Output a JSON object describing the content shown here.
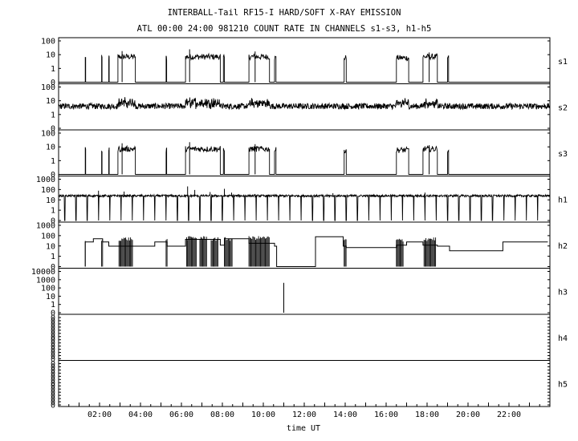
{
  "chart_data": {
    "type": "line",
    "title": "INTERBALL-Tail RF15-I HARD/SOFT X-RAY EMISSION",
    "subtitle": "ATL 00:00 24:00 981210  COUNT RATE IN CHANNELS s1-s3, h1-h5",
    "xlabel": "time UT",
    "xlim": [
      0,
      24
    ],
    "x_ticks": [
      "02:00",
      "04:00",
      "06:00",
      "08:00",
      "10:00",
      "12:00",
      "14:00",
      "16:00",
      "18:00",
      "20:00",
      "22:00"
    ],
    "x_tick_hours": [
      2,
      4,
      6,
      8,
      10,
      12,
      14,
      16,
      18,
      20,
      22
    ],
    "y_scale": "log",
    "panels": [
      {
        "name": "s1",
        "ylim": [
          0.1,
          100
        ],
        "y_ticks": [
          "100",
          "10",
          "1",
          "0"
        ],
        "baseline": 0.1,
        "bursts": [
          [
            1.3,
            1.32,
            5
          ],
          [
            2.1,
            2.12,
            5
          ],
          [
            2.45,
            2.47,
            5
          ],
          [
            2.9,
            3.75,
            6
          ],
          [
            5.25,
            5.28,
            5
          ],
          [
            6.2,
            7.9,
            6
          ],
          [
            8.05,
            8.1,
            5
          ],
          [
            9.3,
            10.3,
            6
          ],
          [
            10.55,
            10.62,
            5
          ],
          [
            13.95,
            14.05,
            5
          ],
          [
            16.5,
            17.1,
            5
          ],
          [
            17.8,
            18.5,
            6
          ],
          [
            19.0,
            19.05,
            5
          ]
        ],
        "spikes": [
          [
            3.1,
            15
          ],
          [
            6.4,
            20
          ],
          [
            9.6,
            14
          ],
          [
            18.1,
            12
          ]
        ]
      },
      {
        "name": "s2",
        "ylim": [
          0.1,
          100
        ],
        "y_ticks": [
          "100",
          "10",
          "1",
          "0"
        ],
        "level": 3.5,
        "noise": 1.6,
        "bursts": [
          [
            2.9,
            3.75,
            6
          ],
          [
            6.2,
            7.9,
            6
          ],
          [
            9.3,
            10.3,
            5
          ],
          [
            16.5,
            17.1,
            5
          ],
          [
            17.8,
            18.5,
            5
          ]
        ],
        "spikes": [
          [
            3.2,
            8
          ],
          [
            6.5,
            9
          ]
        ]
      },
      {
        "name": "s3",
        "ylim": [
          0.1,
          100
        ],
        "y_ticks": [
          "100",
          "10",
          "1",
          "0"
        ],
        "baseline": 0.1,
        "bursts": [
          [
            1.3,
            1.32,
            5
          ],
          [
            2.1,
            2.12,
            5
          ],
          [
            2.45,
            2.47,
            5
          ],
          [
            2.9,
            3.75,
            6
          ],
          [
            5.25,
            5.28,
            5
          ],
          [
            6.2,
            7.9,
            6
          ],
          [
            8.05,
            8.1,
            5
          ],
          [
            9.3,
            10.3,
            6
          ],
          [
            10.55,
            10.62,
            5
          ],
          [
            13.95,
            14.05,
            5
          ],
          [
            16.5,
            17.1,
            5
          ],
          [
            17.8,
            18.5,
            6
          ],
          [
            19.0,
            19.05,
            5
          ]
        ],
        "spikes": [
          [
            3.1,
            15
          ],
          [
            6.4,
            18
          ],
          [
            9.6,
            13
          ],
          [
            18.1,
            11
          ]
        ]
      },
      {
        "name": "h1",
        "ylim": [
          0.1,
          1000
        ],
        "y_ticks": [
          "1000",
          "100",
          "10",
          "1",
          "0"
        ],
        "level": 20,
        "noise": 1.25,
        "dropouts": [
          0.3,
          0.85,
          1.4,
          1.95,
          2.5,
          3.05,
          3.6,
          4.15,
          4.7,
          5.25,
          5.8,
          6.35,
          6.9,
          7.45,
          8.0,
          8.55,
          9.1,
          9.65,
          10.2,
          10.75,
          11.3,
          11.85,
          12.4,
          12.95,
          13.5,
          14.05,
          14.6,
          15.15,
          15.7,
          16.25,
          16.8,
          17.35,
          17.9,
          18.45,
          19.0,
          19.55,
          20.1,
          20.65,
          21.2,
          21.75,
          22.3,
          22.85,
          23.4
        ],
        "spikes": [
          [
            1.95,
            60
          ],
          [
            3.2,
            50
          ],
          [
            6.3,
            150
          ],
          [
            6.65,
            70
          ],
          [
            7.4,
            45
          ],
          [
            8.1,
            90
          ],
          [
            8.45,
            40
          ],
          [
            9.6,
            30
          ],
          [
            13.4,
            35
          ],
          [
            17.9,
            40
          ]
        ]
      },
      {
        "name": "h2",
        "ylim": [
          0.1,
          1000
        ],
        "y_ticks": [
          "1000",
          "100",
          "10",
          "1",
          "0"
        ],
        "steps": [
          [
            1.3,
            20
          ],
          [
            1.7,
            40
          ],
          [
            2.15,
            20
          ],
          [
            2.45,
            8
          ],
          [
            3.8,
            8
          ],
          [
            4.7,
            20
          ],
          [
            5.3,
            8
          ],
          [
            6.2,
            35
          ],
          [
            7.9,
            10
          ],
          [
            8.1,
            40
          ],
          [
            9.3,
            15
          ],
          [
            10.55,
            8
          ],
          [
            10.65,
            0.1
          ],
          [
            12.55,
            60
          ],
          [
            13.9,
            8
          ],
          [
            14.05,
            6
          ],
          [
            16.5,
            10
          ],
          [
            17.0,
            20
          ],
          [
            17.8,
            10
          ],
          [
            18.5,
            8
          ],
          [
            19.1,
            3
          ],
          [
            21.7,
            20
          ],
          [
            23.9,
            20
          ]
        ],
        "bursts": [
          [
            1.3,
            1.32,
            30
          ],
          [
            2.1,
            2.15,
            30
          ],
          [
            2.95,
            3.65,
            40
          ],
          [
            5.25,
            5.3,
            30
          ],
          [
            6.25,
            6.75,
            50
          ],
          [
            6.9,
            7.25,
            50
          ],
          [
            7.45,
            7.8,
            40
          ],
          [
            8.1,
            8.5,
            40
          ],
          [
            9.3,
            10.3,
            50
          ],
          [
            13.95,
            14.05,
            30
          ],
          [
            16.5,
            16.85,
            30
          ],
          [
            17.85,
            18.45,
            40
          ]
        ]
      },
      {
        "name": "h3",
        "ylim": [
          0.1,
          10000
        ],
        "y_ticks": [
          "10000",
          "1000",
          "100",
          "10",
          "1",
          "0"
        ],
        "baseline": 0.1,
        "spikes": [
          [
            11.0,
            300
          ]
        ]
      },
      {
        "name": "h4",
        "ylim": [
          0.1,
          10
        ],
        "y_ticks": [
          "0",
          "0",
          "0",
          "0",
          "0",
          "0",
          "0",
          "0",
          "0",
          "0",
          "0",
          "0",
          "0",
          "0"
        ]
      },
      {
        "name": "h5",
        "ylim": [
          0.1,
          10
        ],
        "y_ticks": [
          "0",
          "0",
          "0",
          "0",
          "0",
          "0",
          "0",
          "0",
          "0",
          "0",
          "0",
          "0",
          "0",
          "0"
        ]
      }
    ]
  }
}
